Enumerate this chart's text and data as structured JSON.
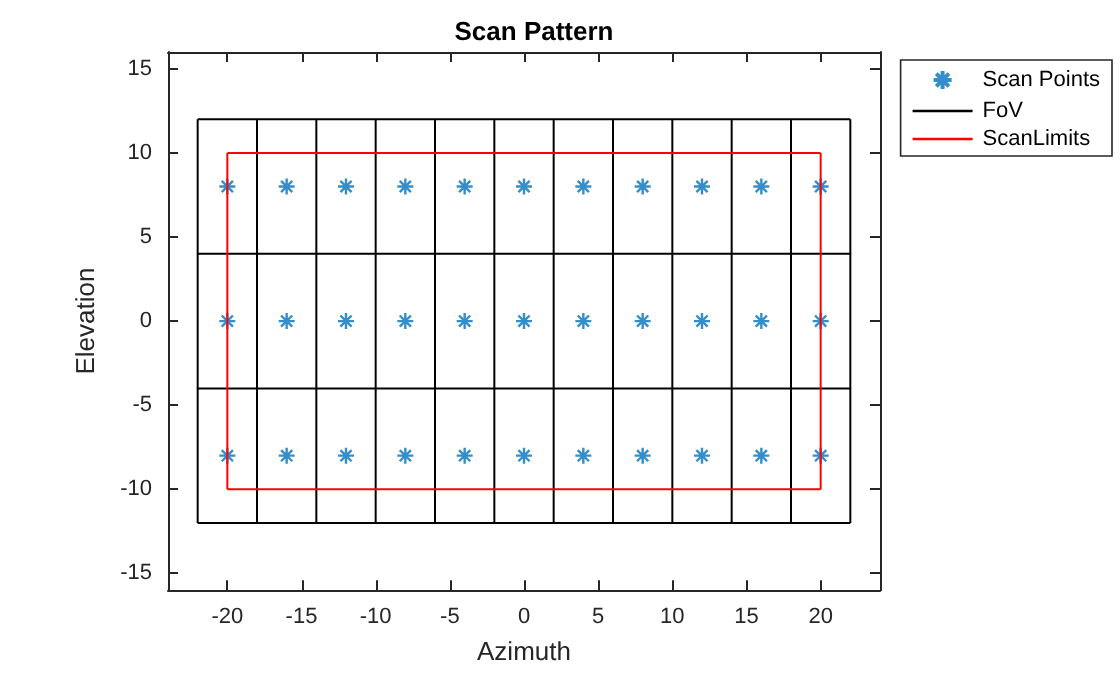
{
  "chart_data": {
    "type": "scatter",
    "title": "Scan Pattern",
    "xlabel": "Azimuth",
    "ylabel": "Elevation",
    "xlim": [
      -24,
      24
    ],
    "xticks": [
      -20,
      -15,
      -10,
      -5,
      0,
      5,
      10,
      15,
      20
    ],
    "ylim": [
      -16,
      16
    ],
    "yticks": [
      -15,
      -10,
      -5,
      0,
      5,
      10,
      15
    ],
    "legend": "right",
    "series": [
      {
        "name": "Scan Points",
        "marker": "cross",
        "color": "#0072bd",
        "x": [
          -20,
          -16,
          -12,
          -8,
          -4,
          0,
          4,
          8,
          12,
          16,
          20,
          -20,
          -16,
          -12,
          -8,
          -4,
          0,
          4,
          8,
          12,
          16,
          20,
          -20,
          -16,
          -12,
          -8,
          -4,
          0,
          4,
          8,
          12,
          16,
          20
        ],
        "values": [
          8,
          8,
          8,
          8,
          8,
          8,
          8,
          8,
          8,
          8,
          8,
          0,
          0,
          0,
          0,
          0,
          0,
          0,
          0,
          0,
          0,
          0,
          -8,
          -8,
          -8,
          -8,
          -8,
          -8,
          -8,
          -8,
          -8,
          -8,
          -8
        ]
      },
      {
        "name": "FoV",
        "type": "line",
        "color": "#000000",
        "x": [
          -22,
          22
        ],
        "values": [
          12,
          12
        ]
      },
      {
        "type": "line",
        "color": "#000000",
        "x": [
          -22,
          22
        ],
        "values": [
          4,
          4
        ]
      },
      {
        "type": "line",
        "color": "#000000",
        "x": [
          -22,
          22
        ],
        "values": [
          -4,
          -4
        ]
      },
      {
        "type": "line",
        "color": "#000000",
        "x": [
          -22,
          22
        ],
        "values": [
          -12,
          -12
        ]
      },
      {
        "type": "line",
        "color": "#000000",
        "x": [
          -22,
          -22
        ],
        "values": [
          -12,
          12
        ]
      },
      {
        "type": "line",
        "color": "#000000",
        "x": [
          -18,
          -18
        ],
        "values": [
          -12,
          12
        ]
      },
      {
        "type": "line",
        "color": "#000000",
        "x": [
          -14,
          -14
        ],
        "values": [
          -12,
          12
        ]
      },
      {
        "type": "line",
        "color": "#000000",
        "x": [
          -10,
          -10
        ],
        "values": [
          -12,
          12
        ]
      },
      {
        "type": "line",
        "color": "#000000",
        "x": [
          -6,
          -6
        ],
        "values": [
          -12,
          12
        ]
      },
      {
        "type": "line",
        "color": "#000000",
        "x": [
          -2,
          -2
        ],
        "values": [
          -12,
          12
        ]
      },
      {
        "type": "line",
        "color": "#000000",
        "x": [
          2,
          2
        ],
        "values": [
          -12,
          12
        ]
      },
      {
        "type": "line",
        "color": "#000000",
        "x": [
          6,
          6
        ],
        "values": [
          -12,
          12
        ]
      },
      {
        "type": "line",
        "color": "#000000",
        "x": [
          10,
          10
        ],
        "values": [
          -12,
          12
        ]
      },
      {
        "type": "line",
        "color": "#000000",
        "x": [
          14,
          14
        ],
        "values": [
          -12,
          12
        ]
      },
      {
        "type": "line",
        "color": "#000000",
        "x": [
          18,
          18
        ],
        "values": [
          -12,
          12
        ]
      },
      {
        "type": "line",
        "color": "#000000",
        "x": [
          22,
          22
        ],
        "values": [
          -12,
          12
        ]
      },
      {
        "name": "ScanLimits",
        "type": "line",
        "color": "#ff0000",
        "x": [
          -20,
          20
        ],
        "values": [
          10,
          10
        ]
      },
      {
        "type": "line",
        "color": "#ff0000",
        "x": [
          -20,
          20
        ],
        "values": [
          -10,
          -10
        ]
      },
      {
        "type": "line",
        "color": "#ff0000",
        "x": [
          -20,
          -20
        ],
        "values": [
          -10,
          10
        ]
      },
      {
        "type": "line",
        "color": "#ff0000",
        "x": [
          20,
          20
        ],
        "values": [
          -10,
          10
        ]
      }
    ]
  }
}
